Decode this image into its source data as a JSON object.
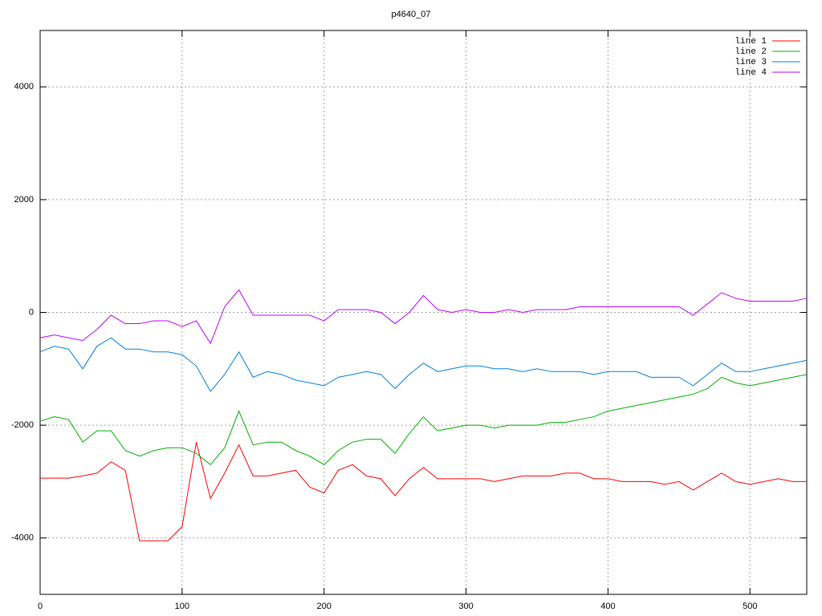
{
  "chart_data": {
    "type": "line",
    "title": "p4640_07",
    "x": [
      0,
      10,
      20,
      30,
      40,
      50,
      60,
      70,
      80,
      90,
      100,
      110,
      120,
      130,
      140,
      150,
      160,
      170,
      180,
      190,
      200,
      210,
      220,
      230,
      240,
      250,
      260,
      270,
      280,
      290,
      300,
      310,
      320,
      330,
      340,
      350,
      360,
      370,
      380,
      390,
      400,
      410,
      420,
      430,
      440,
      450,
      460,
      470,
      480,
      490,
      500,
      510,
      520,
      530,
      540
    ],
    "series": [
      {
        "name": "line 1",
        "color": "#ff0000",
        "values": [
          -2940,
          -2940,
          -2940,
          -2900,
          -2850,
          -2650,
          -2800,
          -4050,
          -4050,
          -4050,
          -3800,
          -2300,
          -3300,
          -2850,
          -2350,
          -2900,
          -2900,
          -2850,
          -2800,
          -3100,
          -3200,
          -2800,
          -2700,
          -2900,
          -2950,
          -3250,
          -2950,
          -2750,
          -2950,
          -2950,
          -2950,
          -2950,
          -3000,
          -2950,
          -2900,
          -2900,
          -2900,
          -2850,
          -2850,
          -2950,
          -2950,
          -3000,
          -3000,
          -3000,
          -3050,
          -3000,
          -3150,
          -3000,
          -2850,
          -3000,
          -3050,
          -3000,
          -2950,
          -3000,
          -3000
        ]
      },
      {
        "name": "line 2",
        "color": "#00b000",
        "values": [
          -1930,
          -1850,
          -1900,
          -2300,
          -2100,
          -2100,
          -2450,
          -2550,
          -2450,
          -2400,
          -2400,
          -2500,
          -2700,
          -2400,
          -1750,
          -2350,
          -2300,
          -2300,
          -2450,
          -2550,
          -2700,
          -2450,
          -2300,
          -2250,
          -2250,
          -2500,
          -2150,
          -1850,
          -2100,
          -2050,
          -2000,
          -2000,
          -2050,
          -2000,
          -2000,
          -2000,
          -1950,
          -1950,
          -1900,
          -1850,
          -1750,
          -1700,
          -1650,
          -1600,
          -1550,
          -1500,
          -1450,
          -1350,
          -1150,
          -1250,
          -1300,
          -1250,
          -1200,
          -1150,
          -1100
        ]
      },
      {
        "name": "line 3",
        "color": "#0080e0",
        "values": [
          -700,
          -600,
          -650,
          -1000,
          -600,
          -450,
          -650,
          -650,
          -700,
          -700,
          -750,
          -950,
          -1400,
          -1100,
          -700,
          -1150,
          -1050,
          -1100,
          -1200,
          -1250,
          -1300,
          -1150,
          -1100,
          -1050,
          -1100,
          -1350,
          -1100,
          -900,
          -1050,
          -1000,
          -950,
          -950,
          -1000,
          -1000,
          -1050,
          -1000,
          -1050,
          -1050,
          -1050,
          -1100,
          -1050,
          -1050,
          -1050,
          -1150,
          -1150,
          -1150,
          -1300,
          -1100,
          -900,
          -1050,
          -1050,
          -1000,
          -950,
          -900,
          -850
        ]
      },
      {
        "name": "line 4",
        "color": "#c000ff",
        "values": [
          -450,
          -400,
          -450,
          -500,
          -300,
          -50,
          -200,
          -200,
          -150,
          -150,
          -250,
          -150,
          -550,
          100,
          400,
          -50,
          -50,
          -50,
          -50,
          -50,
          -150,
          50,
          50,
          50,
          0,
          -200,
          0,
          300,
          50,
          0,
          50,
          0,
          0,
          50,
          0,
          50,
          50,
          50,
          100,
          100,
          100,
          100,
          100,
          100,
          100,
          100,
          -50,
          150,
          350,
          250,
          200,
          200,
          200,
          200,
          250
        ]
      }
    ],
    "xlim": [
      0,
      540
    ],
    "ylim": [
      -5000,
      5000
    ],
    "xticks": [
      0,
      100,
      200,
      300,
      400,
      500
    ],
    "yticks": [
      -4000,
      -2000,
      0,
      2000,
      4000
    ],
    "grid": true,
    "legend": "top-right"
  }
}
